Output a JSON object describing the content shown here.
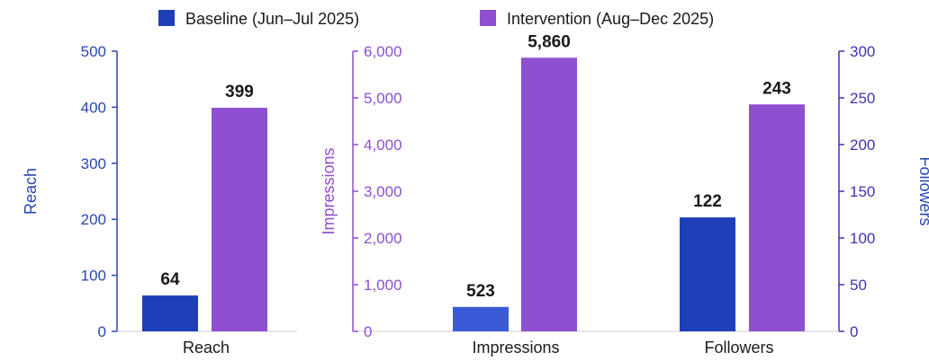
{
  "colors": {
    "baseline": "#1f3fb8",
    "intervention": "#8e4fd0",
    "axis_blue": "#2a46b5",
    "axis_purple": "#8e4fd0",
    "axis_indigo": "#3b35b0"
  },
  "legend": {
    "baseline_label": "Baseline (Jun–Jul 2025)",
    "intervention_label": "Intervention (Aug–Dec 2025)"
  },
  "chart_data": [
    {
      "type": "bar",
      "categories": [
        "Reach"
      ],
      "series": [
        {
          "name": "Baseline (Jun–Jul 2025)",
          "values": [
            64
          ]
        },
        {
          "name": "Intervention (Aug–Dec 2025)",
          "values": [
            399
          ]
        }
      ],
      "ylabel": "Reach",
      "ylim": [
        0,
        500
      ],
      "yticks": [
        "0",
        "100",
        "200",
        "300",
        "400",
        "500"
      ],
      "data_labels": [
        "64",
        "399"
      ]
    },
    {
      "type": "bar",
      "categories": [
        "Impressions"
      ],
      "series": [
        {
          "name": "Baseline (Jun–Jul 2025)",
          "values": [
            523
          ]
        },
        {
          "name": "Intervention (Aug–Dec 2025)",
          "values": [
            5860
          ]
        }
      ],
      "ylabel": "Impressions",
      "ylim": [
        0,
        6000
      ],
      "yticks": [
        "0",
        "1,000",
        "2,000",
        "3,000",
        "4,000",
        "5,000",
        "6,000"
      ],
      "data_labels": [
        "523",
        "5,860"
      ]
    },
    {
      "type": "bar",
      "categories": [
        "Followers"
      ],
      "series": [
        {
          "name": "Baseline (Jun–Jul 2025)",
          "values": [
            122
          ]
        },
        {
          "name": "Intervention (Aug–Dec 2025)",
          "values": [
            243
          ]
        }
      ],
      "ylabel": "Followers",
      "ylim": [
        0,
        300
      ],
      "yticks": [
        "0",
        "50",
        "100",
        "150",
        "200",
        "250",
        "300"
      ],
      "data_labels": [
        "122",
        "243"
      ]
    }
  ]
}
